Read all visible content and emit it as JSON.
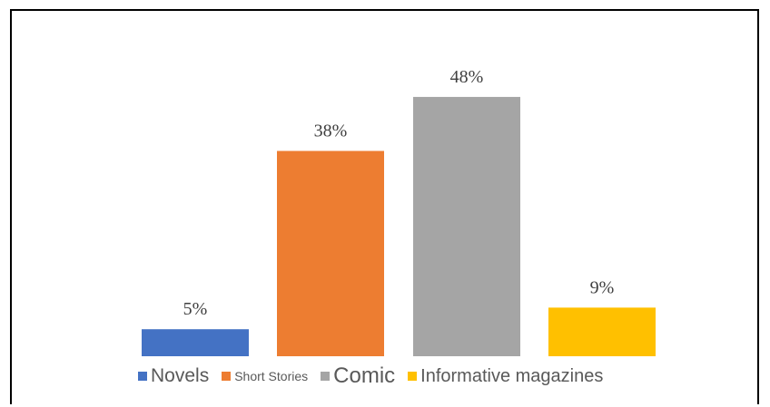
{
  "chart_data": {
    "type": "bar",
    "categories": [
      "Novels",
      "Short Stories",
      "Comic",
      "Informative magazines"
    ],
    "values": [
      5,
      38,
      48,
      9
    ],
    "value_labels": [
      "5%",
      "38%",
      "48%",
      "9%"
    ],
    "colors": [
      "#4472C4",
      "#ED7D31",
      "#A5A5A5",
      "#FFC000"
    ],
    "title": "",
    "xlabel": "",
    "ylabel": "",
    "ylim": [
      0,
      55
    ],
    "grid": false,
    "legend": "bottom"
  }
}
